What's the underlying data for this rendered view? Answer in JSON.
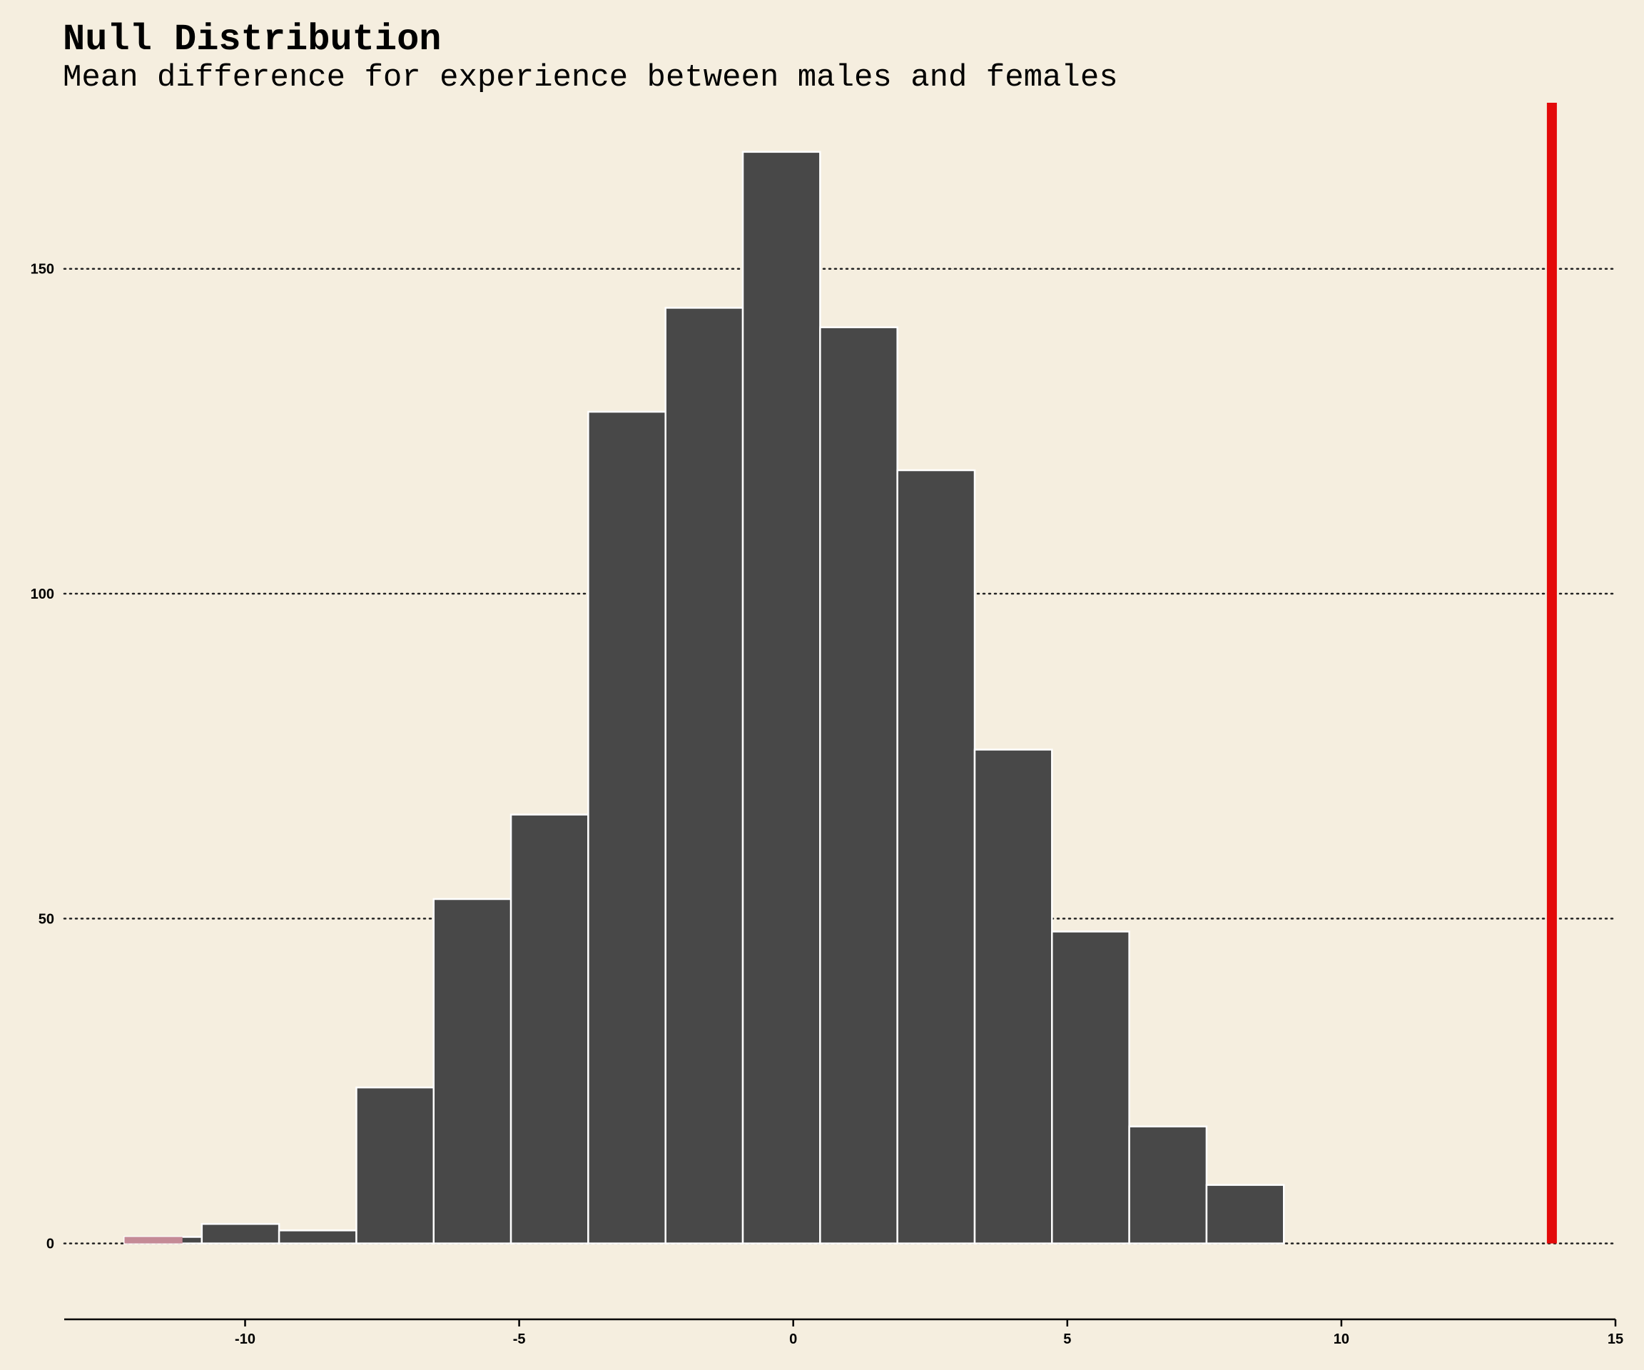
{
  "chart_data": {
    "type": "histogram",
    "title": "Null Distribution",
    "subtitle": "Mean difference for experience between males and females",
    "xlabel": "",
    "ylabel": "",
    "xlim": [
      -13.3,
      15
    ],
    "ylim": [
      -8.5,
      176
    ],
    "x_ticks": [
      -10,
      -5,
      0,
      5,
      10,
      15
    ],
    "y_ticks": [
      0,
      50,
      100,
      150
    ],
    "grid": "horizontal-dotted",
    "bins": [
      {
        "x0": -12.2,
        "x1": -10.79,
        "count": 1,
        "shaded": true
      },
      {
        "x0": -10.79,
        "x1": -9.38,
        "count": 3
      },
      {
        "x0": -9.38,
        "x1": -7.97,
        "count": 2
      },
      {
        "x0": -7.97,
        "x1": -6.56,
        "count": 24
      },
      {
        "x0": -6.56,
        "x1": -5.15,
        "count": 53
      },
      {
        "x0": -5.15,
        "x1": -3.74,
        "count": 66
      },
      {
        "x0": -3.74,
        "x1": -2.33,
        "count": 128
      },
      {
        "x0": -2.33,
        "x1": -0.92,
        "count": 144
      },
      {
        "x0": -0.92,
        "x1": 0.49,
        "count": 168
      },
      {
        "x0": 0.49,
        "x1": 1.9,
        "count": 141
      },
      {
        "x0": 1.9,
        "x1": 3.31,
        "count": 119
      },
      {
        "x0": 3.31,
        "x1": 4.72,
        "count": 76
      },
      {
        "x0": 4.72,
        "x1": 6.13,
        "count": 48
      },
      {
        "x0": 6.13,
        "x1": 7.54,
        "count": 18
      },
      {
        "x0": 7.54,
        "x1": 8.95,
        "count": 9
      }
    ],
    "observed_statistic": 13.84,
    "colors": {
      "background": "#f5eedf",
      "bar_fill": "#484848",
      "bar_edge": "#ffffff",
      "shaded_fill": "#c48a96",
      "observed_line": "#e30a0a"
    }
  }
}
